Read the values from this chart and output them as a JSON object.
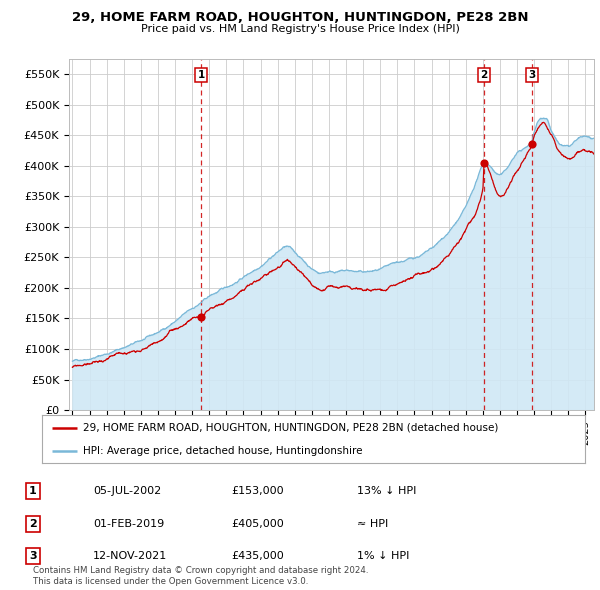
{
  "title": "29, HOME FARM ROAD, HOUGHTON, HUNTINGDON, PE28 2BN",
  "subtitle": "Price paid vs. HM Land Registry's House Price Index (HPI)",
  "ylabel_ticks": [
    "£0",
    "£50K",
    "£100K",
    "£150K",
    "£200K",
    "£250K",
    "£300K",
    "£350K",
    "£400K",
    "£450K",
    "£500K",
    "£550K"
  ],
  "ytick_values": [
    0,
    50000,
    100000,
    150000,
    200000,
    250000,
    300000,
    350000,
    400000,
    450000,
    500000,
    550000
  ],
  "ylim": [
    0,
    575000
  ],
  "xlim_start": 1994.8,
  "xlim_end": 2025.5,
  "sale_points": [
    {
      "year": 2002.52,
      "price": 153000,
      "label": "1"
    },
    {
      "year": 2019.08,
      "price": 405000,
      "label": "2"
    },
    {
      "year": 2021.87,
      "price": 435000,
      "label": "3"
    }
  ],
  "legend_entries": [
    {
      "color": "#cc0000",
      "label": "29, HOME FARM ROAD, HOUGHTON, HUNTINGDON, PE28 2BN (detached house)"
    },
    {
      "color": "#7ab8d8",
      "label": "HPI: Average price, detached house, Huntingdonshire"
    }
  ],
  "table_rows": [
    {
      "num": "1",
      "date": "05-JUL-2002",
      "price": "£153,000",
      "hpi": "13% ↓ HPI"
    },
    {
      "num": "2",
      "date": "01-FEB-2019",
      "price": "£405,000",
      "hpi": "≈ HPI"
    },
    {
      "num": "3",
      "date": "12-NOV-2021",
      "price": "£435,000",
      "hpi": "1% ↓ HPI"
    }
  ],
  "footer": "Contains HM Land Registry data © Crown copyright and database right 2024.\nThis data is licensed under the Open Government Licence v3.0.",
  "bg_color": "#ffffff",
  "grid_color": "#cccccc",
  "hpi_color": "#7ab8d8",
  "hpi_fill_color": "#d0e8f5",
  "sale_color": "#cc0000",
  "vline_color": "#cc0000",
  "title_color": "#000000",
  "dpi": 100,
  "fig_width": 6.0,
  "fig_height": 5.9
}
